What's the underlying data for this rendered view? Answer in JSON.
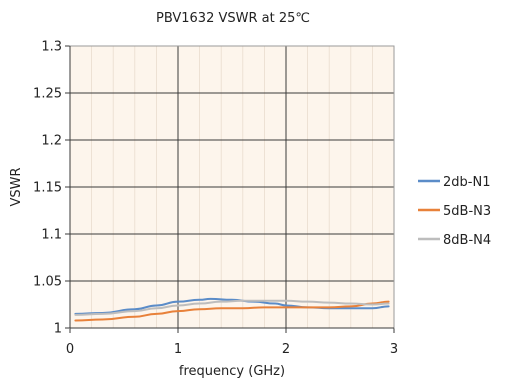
{
  "chart_data": {
    "type": "line",
    "title": "PBV1632 VSWR at 25℃",
    "xlabel": "frequency (GHz)",
    "ylabel": "VSWR",
    "xlim": [
      0,
      3
    ],
    "ylim": [
      1,
      1.3
    ],
    "xticks": [
      "0",
      "1",
      "2",
      "3"
    ],
    "yticks": [
      "1",
      "1.05",
      "1.1",
      "1.15",
      "1.2",
      "1.25",
      "1.3"
    ],
    "grid": true,
    "legend_position": "right",
    "plot_background": "#fdf5ec",
    "series": [
      {
        "name": "2db-N1",
        "color": "#5b8cc8",
        "x": [
          0.05,
          0.3,
          0.6,
          0.8,
          1.0,
          1.2,
          1.3,
          1.5,
          1.7,
          1.9,
          2.0,
          2.2,
          2.4,
          2.6,
          2.8,
          2.95
        ],
        "y": [
          1.015,
          1.016,
          1.02,
          1.024,
          1.028,
          1.03,
          1.031,
          1.03,
          1.028,
          1.026,
          1.024,
          1.022,
          1.021,
          1.021,
          1.021,
          1.023
        ]
      },
      {
        "name": "5dB-N3",
        "color": "#e8813a",
        "x": [
          0.05,
          0.3,
          0.6,
          0.8,
          1.0,
          1.2,
          1.4,
          1.6,
          1.8,
          2.0,
          2.2,
          2.4,
          2.6,
          2.8,
          2.95
        ],
        "y": [
          1.008,
          1.009,
          1.012,
          1.015,
          1.018,
          1.02,
          1.021,
          1.021,
          1.022,
          1.022,
          1.022,
          1.022,
          1.023,
          1.026,
          1.028
        ]
      },
      {
        "name": "8dB-N4",
        "color": "#bdbdbd",
        "x": [
          0.05,
          0.3,
          0.6,
          0.8,
          1.0,
          1.2,
          1.4,
          1.6,
          1.8,
          2.0,
          2.2,
          2.4,
          2.6,
          2.8,
          2.95
        ],
        "y": [
          1.014,
          1.015,
          1.018,
          1.021,
          1.024,
          1.026,
          1.028,
          1.029,
          1.029,
          1.029,
          1.028,
          1.027,
          1.026,
          1.025,
          1.026
        ]
      }
    ]
  }
}
